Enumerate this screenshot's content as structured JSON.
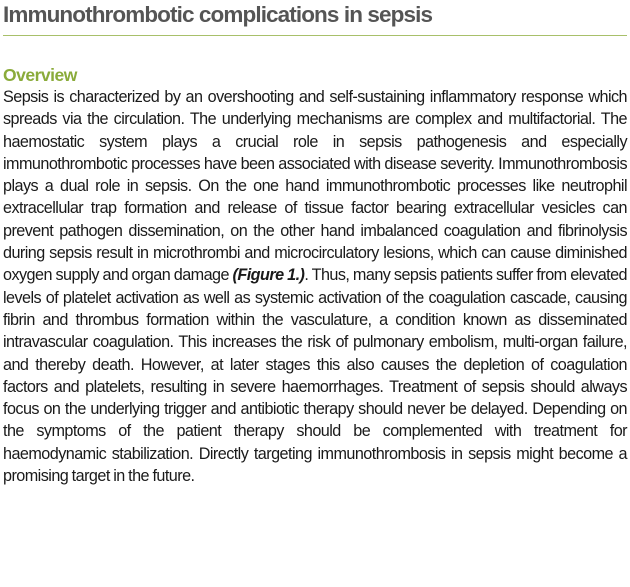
{
  "title": "Immunothrombotic complications in sepsis",
  "section": {
    "heading": "Overview",
    "text_before_ref": "Sepsis is characterized by an overshooting and self-sustaining inflammatory response which spreads via the circulation. The underlying mechanisms are complex and multifactorial. The haemostatic system plays a crucial role in sepsis pathogenesis and especially immunothrombotic processes have been associated with disease severity. Immunothrombosis plays a dual role in sepsis. On the one hand immunothrombotic processes like neutrophil extracellular trap formation and release of tissue factor bearing extracellular vesicles can prevent pathogen dissemination, on the other hand imbalanced coagulation and fibrinolysis during sepsis result in microthrombi and microcirculatory lesions, which can cause diminished oxygen supply and organ damage ",
    "figure_ref": "(Figure 1.)",
    "text_after_ref": ". Thus, many sepsis patients suffer from elevated levels of platelet activation as well as systemic activation of the coagulation cascade, causing fibrin and thrombus formation within the vasculature, a condition known as disseminated intravascular coagulation. This increases the risk of pulmonary embolism, multi-organ failure, and thereby death. However, at later stages this also causes the depletion of coagulation factors and platelets, resulting in severe haemorrhages. Treatment of sepsis should always focus on the underlying trigger and antibiotic therapy should never be delayed. Depending on the symptoms of the patient therapy should be complemented with treatment for haemodynamic stabilization. Directly targeting immunothrombosis in sepsis might become a promising target in the future."
  },
  "colors": {
    "title": "#555555",
    "rule": "#a8c06a",
    "heading": "#8aab3a",
    "body": "#1a1a1a"
  }
}
